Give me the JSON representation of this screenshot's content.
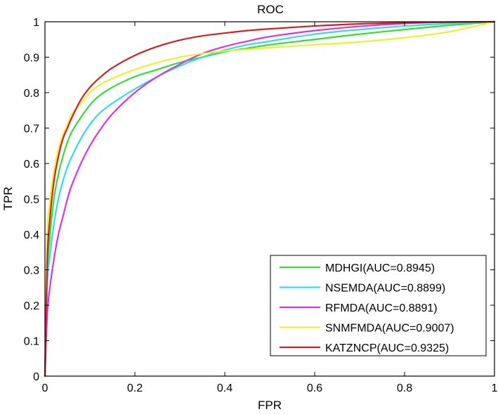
{
  "chart_data": {
    "type": "line",
    "title": "ROC",
    "xlabel": "FPR",
    "ylabel": "TPR",
    "xlim": [
      0,
      1
    ],
    "ylim": [
      0,
      1
    ],
    "grid": false,
    "legend_position": "bottom-right",
    "x_ticks": [
      "0",
      "0.2",
      "0.4",
      "0.6",
      "0.8",
      "1"
    ],
    "y_ticks": [
      "0",
      "0.1",
      "0.2",
      "0.3",
      "0.4",
      "0.5",
      "0.6",
      "0.7",
      "0.8",
      "0.9",
      "1"
    ],
    "series": [
      {
        "name": "MDHGI(AUC=0.8945)",
        "color": "#33dd33",
        "x": [
          0,
          0.005,
          0.01,
          0.02,
          0.03,
          0.04,
          0.05,
          0.06,
          0.08,
          0.1,
          0.12,
          0.15,
          0.2,
          0.25,
          0.3,
          0.35,
          0.4,
          0.45,
          0.5,
          0.6,
          0.7,
          0.8,
          0.9,
          1
        ],
        "y": [
          0,
          0.28,
          0.38,
          0.5,
          0.57,
          0.62,
          0.66,
          0.69,
          0.73,
          0.765,
          0.79,
          0.815,
          0.845,
          0.865,
          0.885,
          0.9,
          0.915,
          0.925,
          0.935,
          0.95,
          0.965,
          0.978,
          0.99,
          1
        ]
      },
      {
        "name": "NSEMDA(AUC=0.8899)",
        "color": "#33dddd",
        "x": [
          0,
          0.005,
          0.01,
          0.02,
          0.03,
          0.04,
          0.05,
          0.06,
          0.08,
          0.1,
          0.12,
          0.15,
          0.2,
          0.25,
          0.3,
          0.35,
          0.4,
          0.45,
          0.5,
          0.6,
          0.7,
          0.8,
          0.9,
          1
        ],
        "y": [
          0,
          0.25,
          0.33,
          0.43,
          0.5,
          0.55,
          0.59,
          0.62,
          0.67,
          0.71,
          0.74,
          0.77,
          0.81,
          0.845,
          0.875,
          0.9,
          0.92,
          0.935,
          0.945,
          0.965,
          0.978,
          0.988,
          0.995,
          1
        ]
      },
      {
        "name": "RFMDA(AUC=0.8891)",
        "color": "#dd33dd",
        "x": [
          0,
          0.005,
          0.01,
          0.02,
          0.03,
          0.04,
          0.05,
          0.06,
          0.08,
          0.1,
          0.12,
          0.15,
          0.2,
          0.25,
          0.3,
          0.35,
          0.4,
          0.45,
          0.5,
          0.6,
          0.7,
          0.8,
          0.9,
          1
        ],
        "y": [
          0,
          0.17,
          0.24,
          0.33,
          0.4,
          0.45,
          0.5,
          0.54,
          0.6,
          0.65,
          0.69,
          0.74,
          0.8,
          0.845,
          0.88,
          0.91,
          0.93,
          0.945,
          0.958,
          0.975,
          0.987,
          0.995,
          0.999,
          1
        ]
      },
      {
        "name": "SNMFMDA(AUC=0.9007)",
        "color": "#eeee33",
        "x": [
          0,
          0.005,
          0.01,
          0.02,
          0.03,
          0.04,
          0.05,
          0.06,
          0.08,
          0.1,
          0.12,
          0.15,
          0.2,
          0.25,
          0.3,
          0.35,
          0.4,
          0.45,
          0.5,
          0.6,
          0.7,
          0.8,
          0.9,
          1
        ],
        "y": [
          0,
          0.38,
          0.48,
          0.58,
          0.64,
          0.68,
          0.71,
          0.74,
          0.77,
          0.8,
          0.82,
          0.84,
          0.865,
          0.885,
          0.9,
          0.91,
          0.917,
          0.922,
          0.927,
          0.935,
          0.943,
          0.955,
          0.972,
          1
        ]
      },
      {
        "name": "KATZNCP(AUC=0.9325)",
        "color": "#cc2222",
        "x": [
          0,
          0.005,
          0.01,
          0.02,
          0.03,
          0.04,
          0.05,
          0.06,
          0.08,
          0.1,
          0.12,
          0.15,
          0.2,
          0.25,
          0.3,
          0.35,
          0.4,
          0.45,
          0.5,
          0.6,
          0.7,
          0.8,
          0.9,
          1
        ],
        "y": [
          0,
          0.32,
          0.43,
          0.55,
          0.62,
          0.67,
          0.7,
          0.73,
          0.78,
          0.815,
          0.84,
          0.87,
          0.905,
          0.93,
          0.948,
          0.96,
          0.968,
          0.975,
          0.98,
          0.988,
          0.994,
          0.997,
          0.999,
          1
        ]
      }
    ]
  }
}
